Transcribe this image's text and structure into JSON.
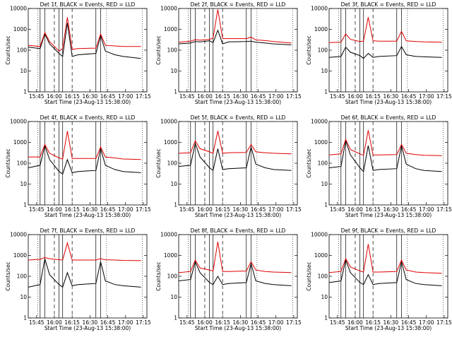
{
  "panel_titles": [
    "Det 1f, BLACK = Events, RED = LLD",
    "Det 2f, BLACK = Events, RED = LLD",
    "Det 3f, BLACK = Events, RED = LLD",
    "Det 4f, BLACK = Events, RED = LLD",
    "Det 5f, BLACK = Events, RED = LLD",
    "Det 6f, BLACK = Events, RED = LLD",
    "Det 7f, BLACK = Events, RED = LLD",
    "Det 8f, BLACK = Events, RED = LLD",
    "Det 9f, BLACK = Events, RED = LLD"
  ],
  "ylabel": "Counts/sec",
  "xlabel": "Start Time (23-Aug-13 15:38:00)",
  "xticks": [
    "15:45",
    "16:00",
    "16:15",
    "16:30",
    "16:45",
    "17:00",
    "17:15"
  ],
  "yticks": [
    "1",
    "10",
    "100",
    "1000",
    "10000"
  ],
  "colors": {
    "events": "#000000",
    "lld": "#e00000"
  },
  "chart_data": [
    {
      "type": "line",
      "title": "Det 1f, BLACK = Events, RED = LLD",
      "x_minutes_from_start": [
        0,
        10,
        14,
        18,
        26,
        29,
        33,
        37,
        42,
        57,
        61,
        65,
        73,
        80,
        95
      ],
      "series": [
        {
          "name": "Events",
          "values": [
            140,
            120,
            600,
            200,
            70,
            50,
            2000,
            50,
            60,
            70,
            500,
            90,
            60,
            50,
            40
          ]
        },
        {
          "name": "LLD",
          "values": [
            170,
            150,
            700,
            260,
            90,
            120,
            3800,
            110,
            120,
            125,
            600,
            170,
            160,
            150,
            150
          ]
        }
      ],
      "ylim": [
        1,
        10000
      ],
      "yscale": "log"
    },
    {
      "type": "line",
      "title": "Det 2f, BLACK = Events, RED = LLD",
      "x_minutes_from_start": [
        0,
        10,
        14,
        18,
        26,
        29,
        33,
        37,
        42,
        57,
        61,
        65,
        73,
        80,
        95
      ],
      "series": [
        {
          "name": "Events",
          "values": [
            200,
            220,
            260,
            250,
            280,
            230,
            900,
            200,
            250,
            260,
            270,
            240,
            220,
            200,
            180
          ]
        },
        {
          "name": "LLD",
          "values": [
            240,
            270,
            320,
            300,
            330,
            380,
            9000,
            360,
            360,
            360,
            420,
            310,
            290,
            260,
            220
          ]
        }
      ],
      "ylim": [
        1,
        10000
      ],
      "yscale": "log"
    },
    {
      "type": "line",
      "title": "Det 3f, BLACK = Events, RED = LLD",
      "x_minutes_from_start": [
        0,
        10,
        14,
        18,
        26,
        29,
        33,
        37,
        42,
        57,
        61,
        65,
        73,
        80,
        95
      ],
      "series": [
        {
          "name": "Events",
          "values": [
            45,
            50,
            140,
            80,
            55,
            40,
            70,
            45,
            50,
            55,
            150,
            60,
            50,
            48,
            45
          ]
        },
        {
          "name": "LLD",
          "values": [
            230,
            240,
            600,
            330,
            260,
            270,
            3800,
            280,
            270,
            270,
            800,
            280,
            260,
            250,
            240
          ]
        }
      ],
      "ylim": [
        1,
        10000
      ],
      "yscale": "log"
    },
    {
      "type": "line",
      "title": "Det 4f, BLACK = Events, RED = LLD",
      "x_minutes_from_start": [
        0,
        10,
        14,
        18,
        26,
        29,
        33,
        37,
        42,
        57,
        61,
        65,
        73,
        80,
        95
      ],
      "series": [
        {
          "name": "Events",
          "values": [
            60,
            80,
            700,
            150,
            40,
            30,
            150,
            35,
            40,
            45,
            500,
            80,
            50,
            40,
            35
          ]
        },
        {
          "name": "LLD",
          "values": [
            200,
            200,
            800,
            300,
            180,
            160,
            3500,
            170,
            170,
            170,
            600,
            200,
            180,
            160,
            150
          ]
        }
      ],
      "ylim": [
        1,
        10000
      ],
      "yscale": "log"
    },
    {
      "type": "line",
      "title": "Det 5f, BLACK = Events, RED = LLD",
      "x_minutes_from_start": [
        0,
        10,
        14,
        18,
        26,
        29,
        33,
        37,
        42,
        57,
        61,
        65,
        73,
        80,
        95
      ],
      "series": [
        {
          "name": "Events",
          "values": [
            70,
            80,
            900,
            200,
            60,
            45,
            500,
            50,
            55,
            60,
            600,
            90,
            60,
            50,
            45
          ]
        },
        {
          "name": "LLD",
          "values": [
            300,
            320,
            1200,
            500,
            350,
            300,
            3500,
            300,
            320,
            330,
            800,
            350,
            320,
            300,
            280
          ]
        }
      ],
      "ylim": [
        1,
        10000
      ],
      "yscale": "log"
    },
    {
      "type": "line",
      "title": "Det 6f, BLACK = Events, RED = LLD",
      "x_minutes_from_start": [
        0,
        10,
        14,
        18,
        26,
        29,
        33,
        37,
        42,
        57,
        61,
        65,
        73,
        80,
        95
      ],
      "series": [
        {
          "name": "Events",
          "values": [
            60,
            70,
            1200,
            250,
            60,
            40,
            700,
            45,
            50,
            55,
            700,
            90,
            55,
            45,
            40
          ]
        },
        {
          "name": "LLD",
          "values": [
            250,
            280,
            1400,
            450,
            280,
            240,
            3800,
            250,
            250,
            260,
            800,
            300,
            260,
            240,
            230
          ]
        }
      ],
      "ylim": [
        1,
        10000
      ],
      "yscale": "log"
    },
    {
      "type": "line",
      "title": "Det 7f, BLACK = Events, RED = LLD",
      "x_minutes_from_start": [
        0,
        10,
        14,
        18,
        26,
        29,
        33,
        37,
        42,
        57,
        61,
        65,
        73,
        80,
        95
      ],
      "series": [
        {
          "name": "Events",
          "values": [
            30,
            40,
            700,
            120,
            40,
            30,
            150,
            35,
            40,
            45,
            500,
            60,
            40,
            35,
            30
          ]
        },
        {
          "name": "LLD",
          "values": [
            600,
            650,
            800,
            700,
            620,
            600,
            4000,
            600,
            600,
            600,
            700,
            620,
            600,
            580,
            560
          ]
        }
      ],
      "ylim": [
        1,
        10000
      ],
      "yscale": "log"
    },
    {
      "type": "line",
      "title": "Det 8f, BLACK = Events, RED = LLD",
      "x_minutes_from_start": [
        0,
        10,
        14,
        18,
        26,
        29,
        33,
        37,
        42,
        57,
        61,
        65,
        73,
        80,
        95
      ],
      "series": [
        {
          "name": "Events",
          "values": [
            60,
            70,
            500,
            150,
            50,
            40,
            100,
            40,
            45,
            50,
            400,
            60,
            45,
            40,
            35
          ]
        },
        {
          "name": "LLD",
          "values": [
            150,
            170,
            600,
            250,
            200,
            180,
            4500,
            170,
            170,
            180,
            500,
            200,
            170,
            160,
            150
          ]
        }
      ],
      "ylim": [
        1,
        10000
      ],
      "yscale": "log"
    },
    {
      "type": "line",
      "title": "Det 9f, BLACK = Events, RED = LLD",
      "x_minutes_from_start": [
        0,
        10,
        14,
        18,
        26,
        29,
        33,
        37,
        42,
        57,
        61,
        65,
        73,
        80,
        95
      ],
      "series": [
        {
          "name": "Events",
          "values": [
            50,
            60,
            600,
            150,
            50,
            40,
            120,
            40,
            45,
            50,
            500,
            70,
            45,
            40,
            35
          ]
        },
        {
          "name": "LLD",
          "values": [
            150,
            170,
            700,
            280,
            180,
            160,
            3500,
            160,
            160,
            170,
            600,
            200,
            160,
            150,
            140
          ]
        }
      ],
      "ylim": [
        1,
        10000
      ],
      "yscale": "log"
    }
  ]
}
